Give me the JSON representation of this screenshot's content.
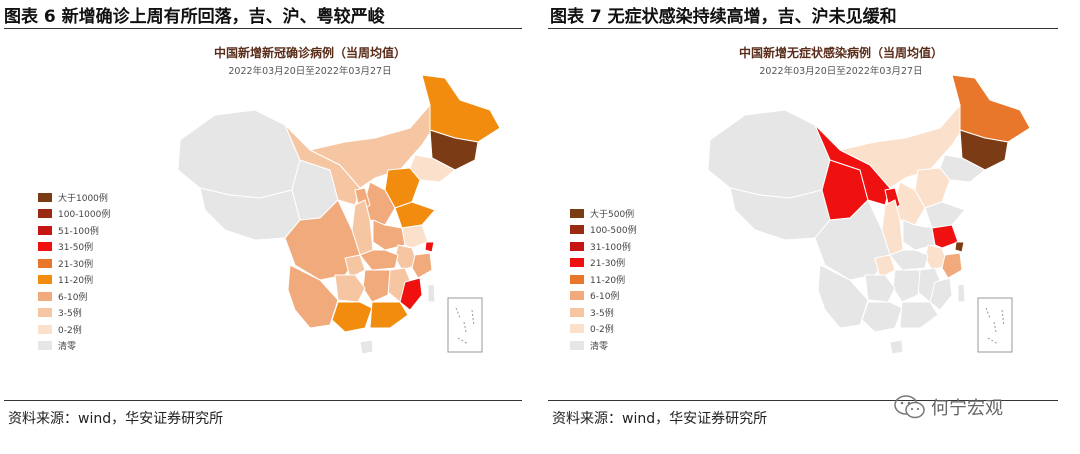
{
  "left": {
    "figure_title": "图表 6 新增确诊上周有所回落，吉、沪、粤较严峻",
    "map_title": "中国新增新冠确诊病例（当周均值）",
    "map_subtitle": "2022年03月20日至2022年03月27日",
    "legend": [
      {
        "label": "大于1000例",
        "color": "#7b3b14"
      },
      {
        "label": "100-1000例",
        "color": "#9b2a14"
      },
      {
        "label": "51-100例",
        "color": "#c71414"
      },
      {
        "label": "31-50例",
        "color": "#ef1010"
      },
      {
        "label": "21-30例",
        "color": "#e9772b"
      },
      {
        "label": "11-20例",
        "color": "#f28c0f"
      },
      {
        "label": "6-10例",
        "color": "#f0aa7c"
      },
      {
        "label": "3-5例",
        "color": "#f6c6a2"
      },
      {
        "label": "0-2例",
        "color": "#fbe0cc"
      },
      {
        "label": "清零",
        "color": "#e6e6e6"
      }
    ],
    "source": "资料来源：wind，华安证券研究所"
  },
  "right": {
    "figure_title": "图表 7 无症状感染持续高增，吉、沪未见缓和",
    "map_title": "中国新增无症状感染病例（当周均值）",
    "map_subtitle": "2022年03月20日至2022年03月27日",
    "legend": [
      {
        "label": "大于500例",
        "color": "#7b3b14"
      },
      {
        "label": "100-500例",
        "color": "#9b2a14"
      },
      {
        "label": "31-100例",
        "color": "#c71414"
      },
      {
        "label": "21-30例",
        "color": "#ef1010"
      },
      {
        "label": "11-20例",
        "color": "#e9772b"
      },
      {
        "label": "6-10例",
        "color": "#f0aa7c"
      },
      {
        "label": "3-5例",
        "color": "#f6c6a2"
      },
      {
        "label": "0-2例",
        "color": "#fbe0cc"
      },
      {
        "label": "清零",
        "color": "#e6e6e6"
      }
    ],
    "source": "资料来源：wind，华安证券研究所"
  },
  "watermark": "何宁宏观",
  "colors": {
    "outline": "#ffffff",
    "inset_border": "#999999"
  }
}
